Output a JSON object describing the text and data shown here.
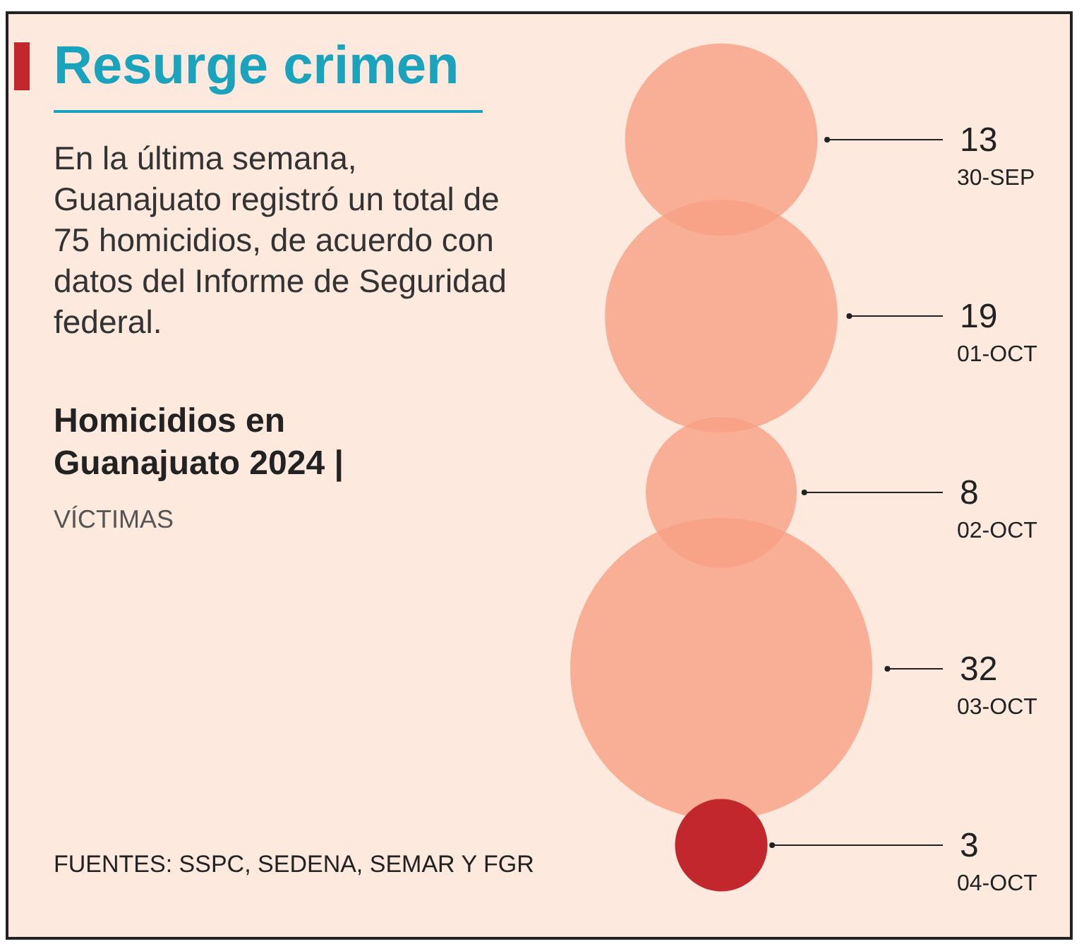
{
  "chart_data": {
    "type": "other",
    "title": "Resurge crimen",
    "subtitle": "En la última semana, Guanajuato registró un total de 75 homicidios, de acuerdo con datos del Informe de Seguridad federal.",
    "ylabel": "Homicidios en Guanajuato 2024 |",
    "legend_title": "VÍCTIMAS",
    "categories": [
      "30-SEP",
      "01-OCT",
      "02-OCT",
      "03-OCT",
      "04-OCT"
    ],
    "values": [
      13,
      19,
      8,
      32,
      3
    ],
    "colors": [
      "#f7a083",
      "#f7a083",
      "#f7a083",
      "#f7a083",
      "#c1272d"
    ],
    "data_labels": true,
    "annotations": [
      "FUENTES: SSPC, SEDENA, SEMAR Y FGR"
    ]
  }
}
